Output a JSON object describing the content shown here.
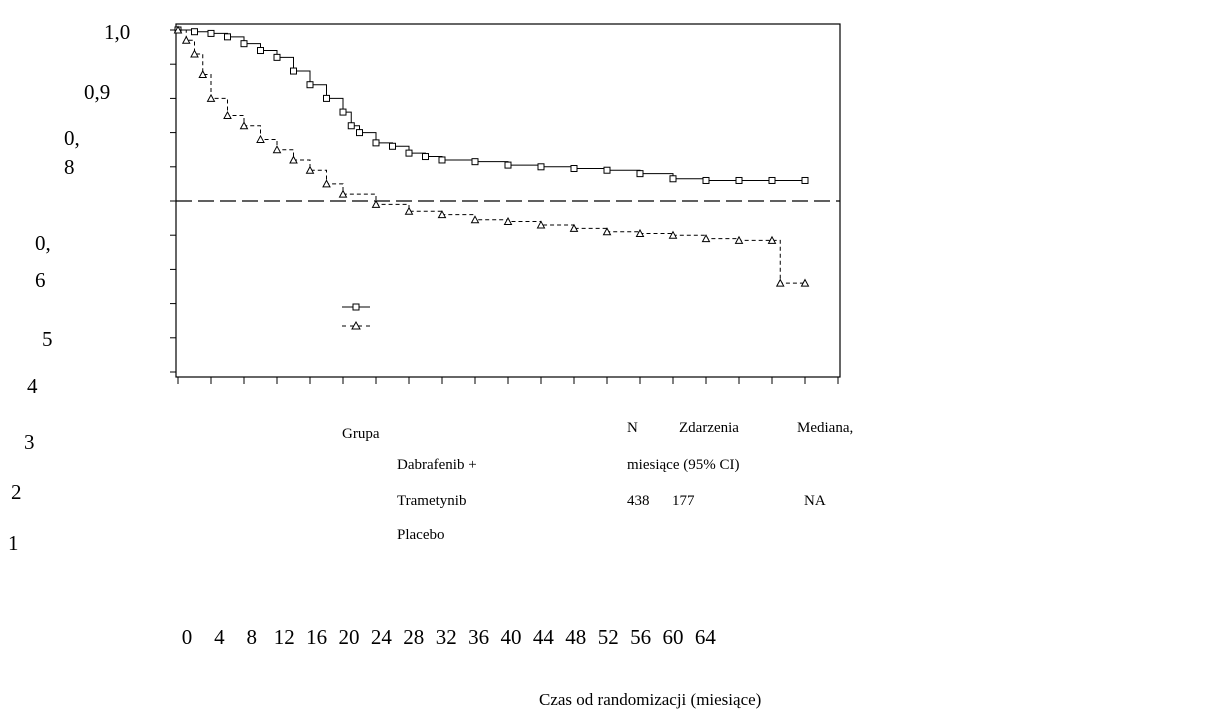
{
  "chart_data": {
    "type": "line",
    "title": "",
    "xlabel": "Czas od randomizacji (miesiące)",
    "ylabel": "",
    "xlim": [
      0,
      40
    ],
    "ylim": [
      0.0,
      1.0
    ],
    "x_ticks": [
      "0",
      "4",
      "8",
      "12",
      "16",
      "20",
      "24",
      "28",
      "32",
      "36",
      "40",
      "44",
      "48",
      "52",
      "56",
      "60",
      "64"
    ],
    "y_tick_text": [
      {
        "text": "1,0"
      },
      {
        "text": "0,9"
      },
      {
        "text": "0,"
      },
      {
        "text": "8"
      },
      {
        "text": "0,"
      },
      {
        "text": "6"
      },
      {
        "text": "5"
      },
      {
        "text": "4"
      },
      {
        "text": "3"
      },
      {
        "text": "2"
      },
      {
        "text": "1"
      }
    ],
    "reference_line": 0.5,
    "series": [
      {
        "marker": "square",
        "line": "solid",
        "x": [
          0,
          1,
          2,
          3,
          4,
          5,
          6,
          7,
          8,
          9,
          10,
          10.5,
          11,
          12,
          13,
          14,
          15,
          16,
          18,
          20,
          22,
          24,
          26,
          28,
          30,
          32,
          34,
          36,
          38
        ],
        "y": [
          1.0,
          0.995,
          0.99,
          0.98,
          0.96,
          0.94,
          0.92,
          0.88,
          0.84,
          0.8,
          0.76,
          0.72,
          0.7,
          0.67,
          0.66,
          0.64,
          0.63,
          0.62,
          0.615,
          0.605,
          0.6,
          0.595,
          0.59,
          0.58,
          0.565,
          0.56,
          0.56,
          0.56,
          0.56
        ]
      },
      {
        "marker": "triangle",
        "line": "dashed",
        "x": [
          0,
          0.5,
          1,
          1.5,
          2,
          3,
          4,
          5,
          6,
          7,
          8,
          9,
          10,
          12,
          14,
          16,
          18,
          20,
          22,
          24,
          26,
          28,
          30,
          32,
          34,
          36,
          36.5,
          38
        ],
        "y": [
          1.0,
          0.97,
          0.93,
          0.87,
          0.8,
          0.75,
          0.72,
          0.68,
          0.65,
          0.62,
          0.59,
          0.55,
          0.52,
          0.49,
          0.47,
          0.46,
          0.445,
          0.44,
          0.43,
          0.42,
          0.41,
          0.405,
          0.4,
          0.39,
          0.385,
          0.385,
          0.26,
          0.26
        ]
      }
    ]
  },
  "table": {
    "group_header": "Grupa",
    "n_header": "N",
    "events_header": "Zdarzenia",
    "median_header": "Mediana,",
    "median_unit": "miesiące (95% CI)",
    "row1_name_a": "Dabrafenib +",
    "row1_name_b": "Trametynib",
    "row1_n": "438",
    "row1_events": "177",
    "row1_median": "NA",
    "row2_name": "Placebo"
  },
  "colors": {
    "line": "#000000",
    "background": "#ffffff"
  }
}
